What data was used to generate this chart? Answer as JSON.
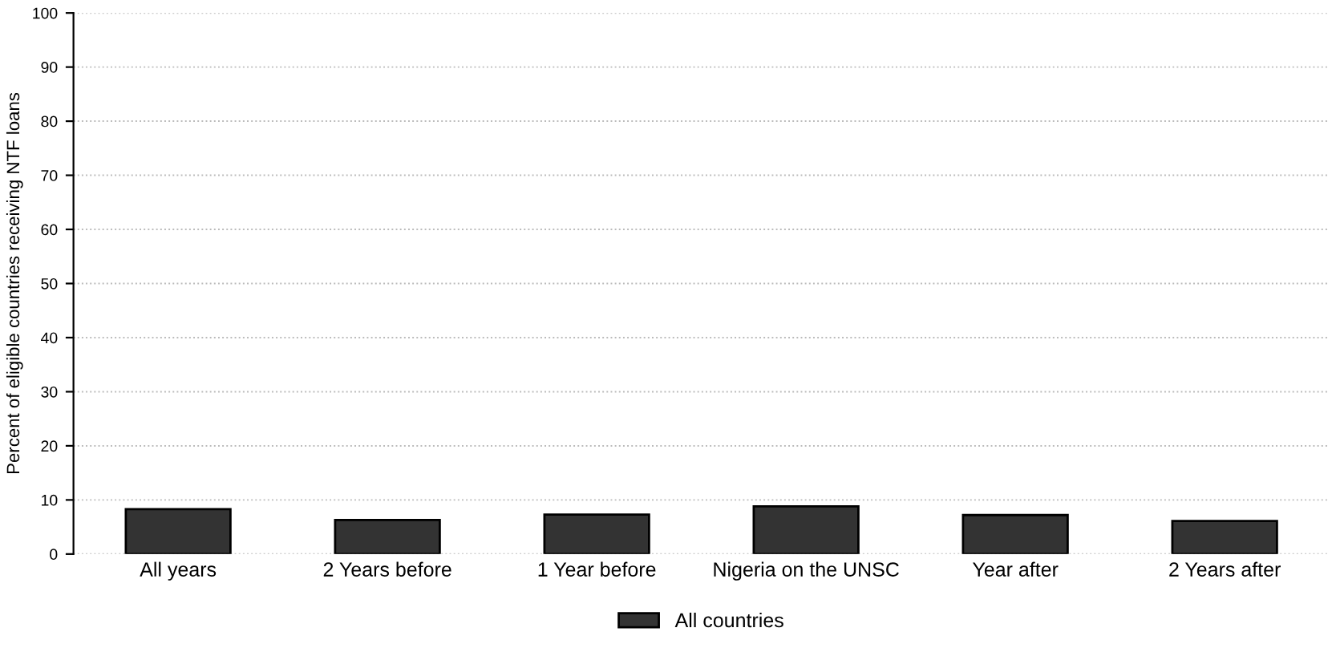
{
  "chart_data": {
    "type": "bar",
    "ylabel": "Percent of eligible countries receiving NTF loans",
    "categories": [
      "All years",
      "2 Years before",
      "1 Year before",
      "Nigeria on the UNSC",
      "Year after",
      "2 Years after"
    ],
    "series": [
      {
        "name": "All countries",
        "color": "#333333",
        "values": [
          8.3,
          6.3,
          7.3,
          8.8,
          7.2,
          6.1
        ]
      }
    ],
    "ylim": [
      0,
      100
    ],
    "yticks": [
      0,
      10,
      20,
      30,
      40,
      50,
      60,
      70,
      80,
      90,
      100
    ],
    "grid": "y",
    "line_style": "dotted",
    "legend": "bottom"
  }
}
